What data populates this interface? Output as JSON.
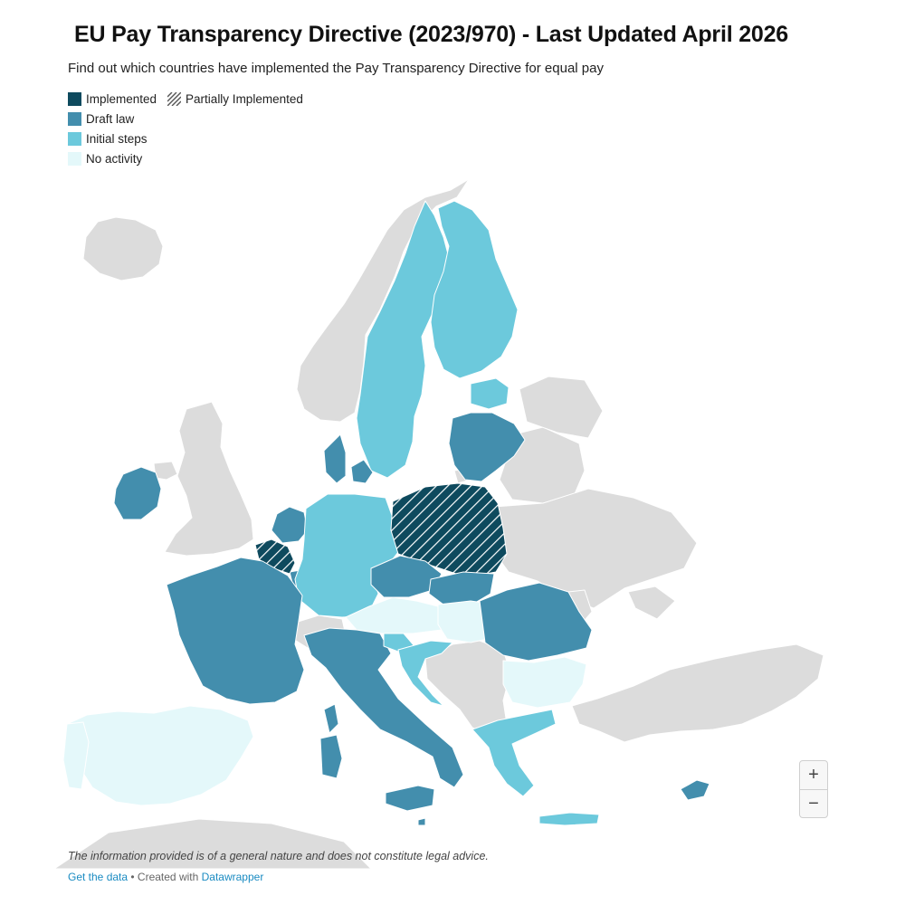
{
  "title": "EU Pay Transparency Directive (2023/970) - Last Updated April 2026",
  "subtitle": "Find out which countries have implemented the Pay Transparency Directive for equal pay",
  "colors": {
    "implemented": "#0e4a5e",
    "draft_law": "#438ead",
    "initial_steps": "#6cc9dc",
    "no_activity": "#e4f8fa",
    "non_eu": "#dcdcdc",
    "border": "#ffffff"
  },
  "legend": {
    "implemented": "Implemented",
    "partially_implemented": "Partially Implemented",
    "draft_law": "Draft law",
    "initial_steps": "Initial steps",
    "no_activity": "No activity"
  },
  "zoom": {
    "plus": "+",
    "minus": "−"
  },
  "notes": "The information provided is of a general nature and does not constitute legal advice.",
  "footer": {
    "get_data": "Get the data",
    "separator": " • Created with ",
    "datawrapper": "Datawrapper"
  },
  "regions": [
    {
      "name": "iceland",
      "status": "non_eu"
    },
    {
      "name": "norway",
      "status": "non_eu"
    },
    {
      "name": "united-kingdom",
      "status": "non_eu"
    },
    {
      "name": "northern-ireland",
      "status": "non_eu"
    },
    {
      "name": "switzerland",
      "status": "non_eu"
    },
    {
      "name": "belarus",
      "status": "non_eu"
    },
    {
      "name": "ukraine",
      "status": "non_eu"
    },
    {
      "name": "russia-west",
      "status": "non_eu"
    },
    {
      "name": "moldova",
      "status": "non_eu"
    },
    {
      "name": "balkans",
      "status": "non_eu"
    },
    {
      "name": "turkey",
      "status": "non_eu"
    },
    {
      "name": "north-africa",
      "status": "non_eu"
    },
    {
      "name": "kaliningrad",
      "status": "non_eu"
    },
    {
      "name": "crimea",
      "status": "non_eu"
    },
    {
      "name": "sweden",
      "status": "initial_steps"
    },
    {
      "name": "finland",
      "status": "initial_steps"
    },
    {
      "name": "estonia",
      "status": "initial_steps"
    },
    {
      "name": "latvia-lithuania",
      "status": "draft_law"
    },
    {
      "name": "ireland",
      "status": "draft_law"
    },
    {
      "name": "denmark",
      "status": "draft_law"
    },
    {
      "name": "netherlands",
      "status": "draft_law"
    },
    {
      "name": "luxembourg",
      "status": "draft_law"
    },
    {
      "name": "germany",
      "status": "initial_steps"
    },
    {
      "name": "belgium",
      "status": "implemented",
      "partial": true
    },
    {
      "name": "poland",
      "status": "implemented",
      "partial": true
    },
    {
      "name": "france",
      "status": "draft_law"
    },
    {
      "name": "czechia",
      "status": "draft_law"
    },
    {
      "name": "slovakia",
      "status": "draft_law"
    },
    {
      "name": "austria",
      "status": "no_activity"
    },
    {
      "name": "hungary",
      "status": "no_activity"
    },
    {
      "name": "italy",
      "status": "draft_law"
    },
    {
      "name": "sardinia",
      "status": "draft_law"
    },
    {
      "name": "corsica",
      "status": "draft_law"
    },
    {
      "name": "sicily",
      "status": "draft_law"
    },
    {
      "name": "slovenia",
      "status": "initial_steps"
    },
    {
      "name": "croatia",
      "status": "initial_steps"
    },
    {
      "name": "romania",
      "status": "draft_law"
    },
    {
      "name": "bulgaria",
      "status": "no_activity"
    },
    {
      "name": "greece",
      "status": "initial_steps"
    },
    {
      "name": "crete",
      "status": "initial_steps"
    },
    {
      "name": "cyprus",
      "status": "draft_law"
    },
    {
      "name": "spain",
      "status": "no_activity"
    },
    {
      "name": "portugal",
      "status": "no_activity"
    },
    {
      "name": "malta",
      "status": "draft_law"
    }
  ]
}
